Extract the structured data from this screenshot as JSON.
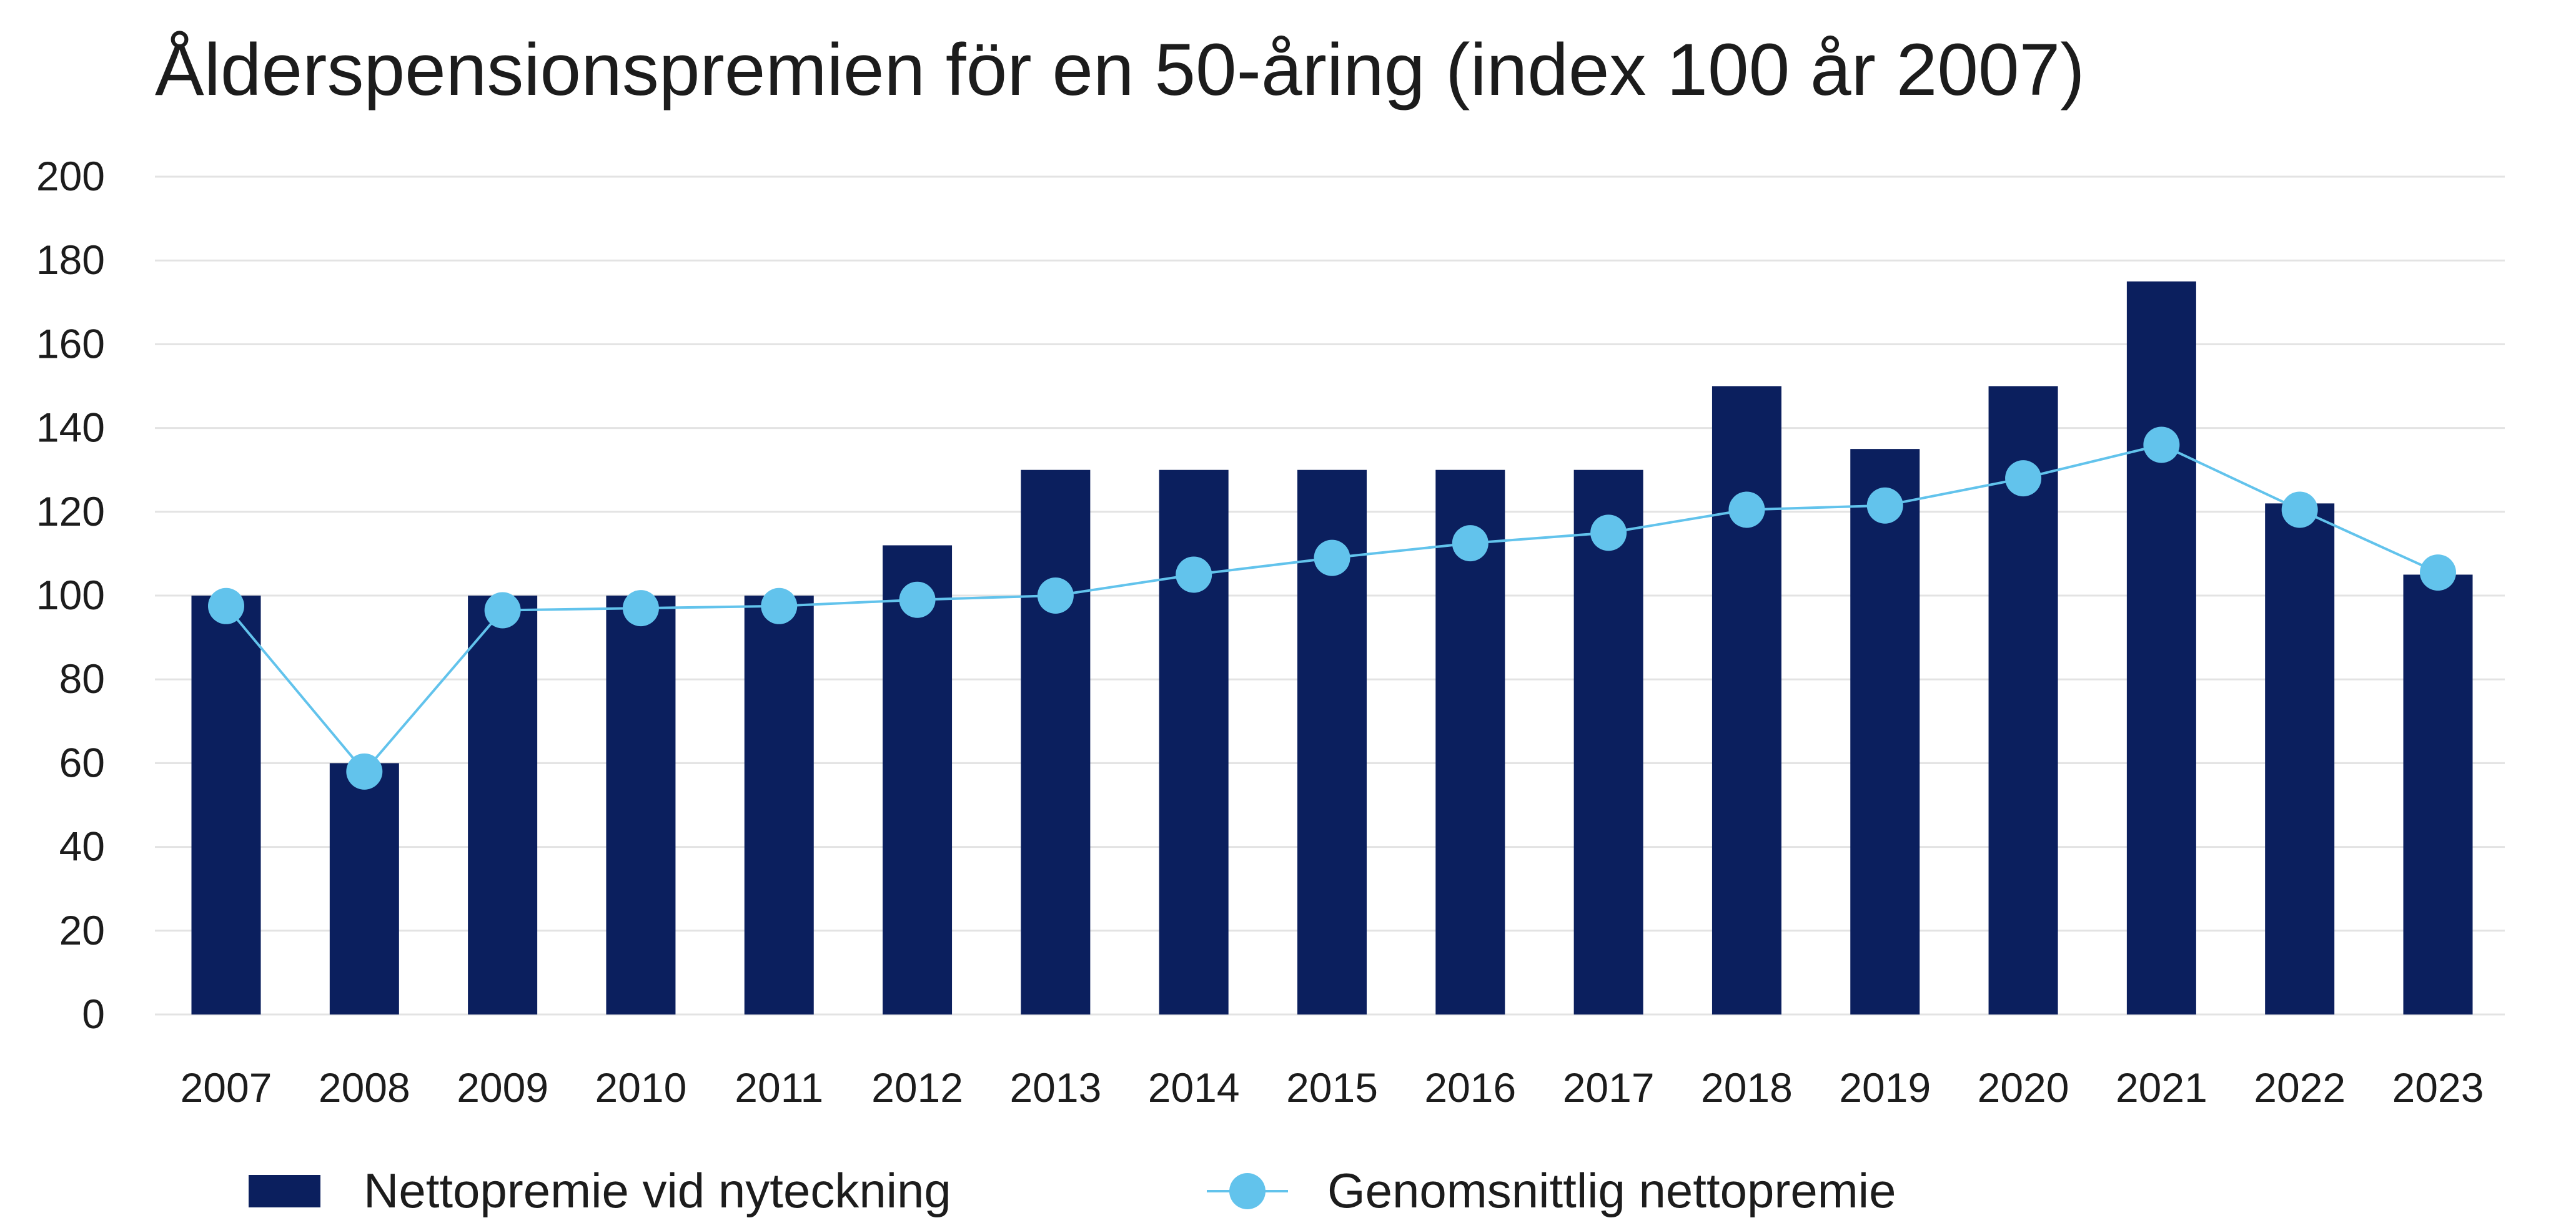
{
  "chart_data": {
    "type": "bar",
    "title": "Ålderspensionspremien för en 50-åring (index 100 år 2007)",
    "xlabel": "",
    "ylabel": "",
    "ylim": [
      0,
      200
    ],
    "yticks": [
      0,
      20,
      40,
      60,
      80,
      100,
      120,
      140,
      160,
      180,
      200
    ],
    "grid": true,
    "legend_position": "bottom",
    "categories": [
      "2007",
      "2008",
      "2009",
      "2010",
      "2011",
      "2012",
      "2013",
      "2014",
      "2015",
      "2016",
      "2017",
      "2018",
      "2019",
      "2020",
      "2021",
      "2022",
      "2023"
    ],
    "series": [
      {
        "name": "Nettopremie vid nyteckning",
        "type": "bar",
        "color": "#0b1f5e",
        "values": [
          100,
          60,
          100,
          100,
          100,
          112,
          130,
          130,
          130,
          130,
          130,
          150,
          135,
          150,
          175,
          122,
          105
        ]
      },
      {
        "name": "Genomsnittlig nettopremie",
        "type": "line",
        "color": "#62c3ec",
        "values": [
          97.5,
          58,
          96.5,
          97,
          97.5,
          99,
          100,
          105,
          109,
          112.5,
          115,
          120.5,
          121.5,
          128,
          136,
          120.5,
          105.5
        ]
      }
    ]
  }
}
